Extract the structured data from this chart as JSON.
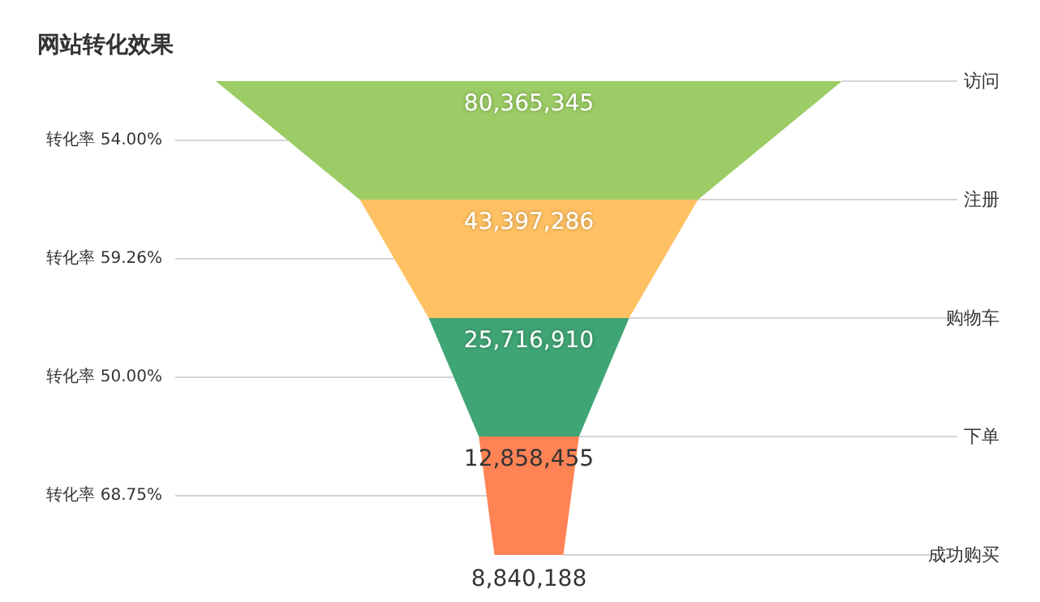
{
  "chart_data": {
    "type": "other",
    "title": "网站转化效果",
    "categories": [
      "访问",
      "注册",
      "购物车",
      "下单",
      "成功购买"
    ],
    "values": [
      80365345,
      43397286,
      25716910,
      12858455,
      8840188
    ],
    "colors": [
      "#9ccc65",
      "#ffc163",
      "#3fa574",
      "#ff8355",
      "#333333"
    ],
    "value_labels": [
      "80,365,345",
      "43,397,286",
      "25,716,910",
      "12,858,455",
      "8,840,188"
    ],
    "annotations": [
      "转化率 54.00%",
      "转化率 59.26%",
      "转化率 50.00%",
      "转化率 68.75%"
    ],
    "data_labels": true
  }
}
